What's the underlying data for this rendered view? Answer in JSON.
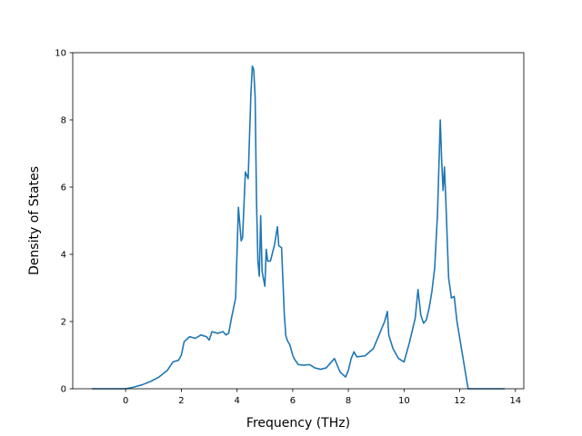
{
  "chart_data": {
    "type": "line",
    "title": "",
    "xlabel": "Frequency (THz)",
    "ylabel": "Density of States",
    "xlim": [
      -1.9,
      14.3
    ],
    "ylim": [
      0,
      10
    ],
    "xticks": [
      0,
      2,
      4,
      6,
      8,
      10,
      12,
      14
    ],
    "xtick_labels": [
      "0",
      "2",
      "4",
      "6",
      "8",
      "10",
      "12",
      "14"
    ],
    "yticks": [
      0,
      2,
      4,
      6,
      8,
      10
    ],
    "ytick_labels": [
      "0",
      "2",
      "4",
      "6",
      "8",
      "10"
    ],
    "grid": false,
    "legend": "none",
    "series": [
      {
        "color": "#1f77b4",
        "x": [
          -1.2,
          0.0,
          0.3,
          0.6,
          0.9,
          1.2,
          1.5,
          1.7,
          1.9,
          2.0,
          2.1,
          2.3,
          2.5,
          2.7,
          2.9,
          3.0,
          3.1,
          3.3,
          3.5,
          3.6,
          3.7,
          3.8,
          3.9,
          3.95,
          4.05,
          4.15,
          4.2,
          4.3,
          4.4,
          4.5,
          4.55,
          4.6,
          4.65,
          4.7,
          4.75,
          4.8,
          4.85,
          4.9,
          5.0,
          5.05,
          5.1,
          5.2,
          5.35,
          5.45,
          5.5,
          5.6,
          5.7,
          5.75,
          5.8,
          5.9,
          6.0,
          6.05,
          6.2,
          6.4,
          6.6,
          6.8,
          7.0,
          7.2,
          7.5,
          7.7,
          7.9,
          8.0,
          8.1,
          8.2,
          8.3,
          8.6,
          8.9,
          9.1,
          9.3,
          9.4,
          9.45,
          9.6,
          9.8,
          10.0,
          10.2,
          10.4,
          10.5,
          10.6,
          10.7,
          10.8,
          10.9,
          11.0,
          11.1,
          11.2,
          11.3,
          11.35,
          11.4,
          11.45,
          11.5,
          11.6,
          11.7,
          11.8,
          11.9,
          12.0,
          12.1,
          12.2,
          12.3,
          12.5,
          13.0,
          13.6
        ],
        "y": [
          0.0,
          0.0,
          0.05,
          0.12,
          0.22,
          0.35,
          0.55,
          0.8,
          0.85,
          1.0,
          1.4,
          1.55,
          1.5,
          1.6,
          1.55,
          1.45,
          1.7,
          1.65,
          1.7,
          1.6,
          1.65,
          2.1,
          2.5,
          2.7,
          5.4,
          4.4,
          4.5,
          6.45,
          6.25,
          8.8,
          9.6,
          9.5,
          8.7,
          5.6,
          3.8,
          3.35,
          5.15,
          3.5,
          3.05,
          4.15,
          3.8,
          3.8,
          4.3,
          4.82,
          4.25,
          4.2,
          2.2,
          1.6,
          1.45,
          1.3,
          1.0,
          0.9,
          0.72,
          0.7,
          0.72,
          0.62,
          0.58,
          0.62,
          0.9,
          0.5,
          0.35,
          0.55,
          0.9,
          1.1,
          0.95,
          0.98,
          1.2,
          1.6,
          2.0,
          2.3,
          1.6,
          1.2,
          0.9,
          0.8,
          1.4,
          2.1,
          2.95,
          2.2,
          1.95,
          2.05,
          2.4,
          2.9,
          3.6,
          5.2,
          8.0,
          6.8,
          5.9,
          6.6,
          5.6,
          3.3,
          2.7,
          2.75,
          2.0,
          1.5,
          1.0,
          0.5,
          0.0,
          0.0,
          0.0,
          0.0
        ]
      }
    ]
  }
}
